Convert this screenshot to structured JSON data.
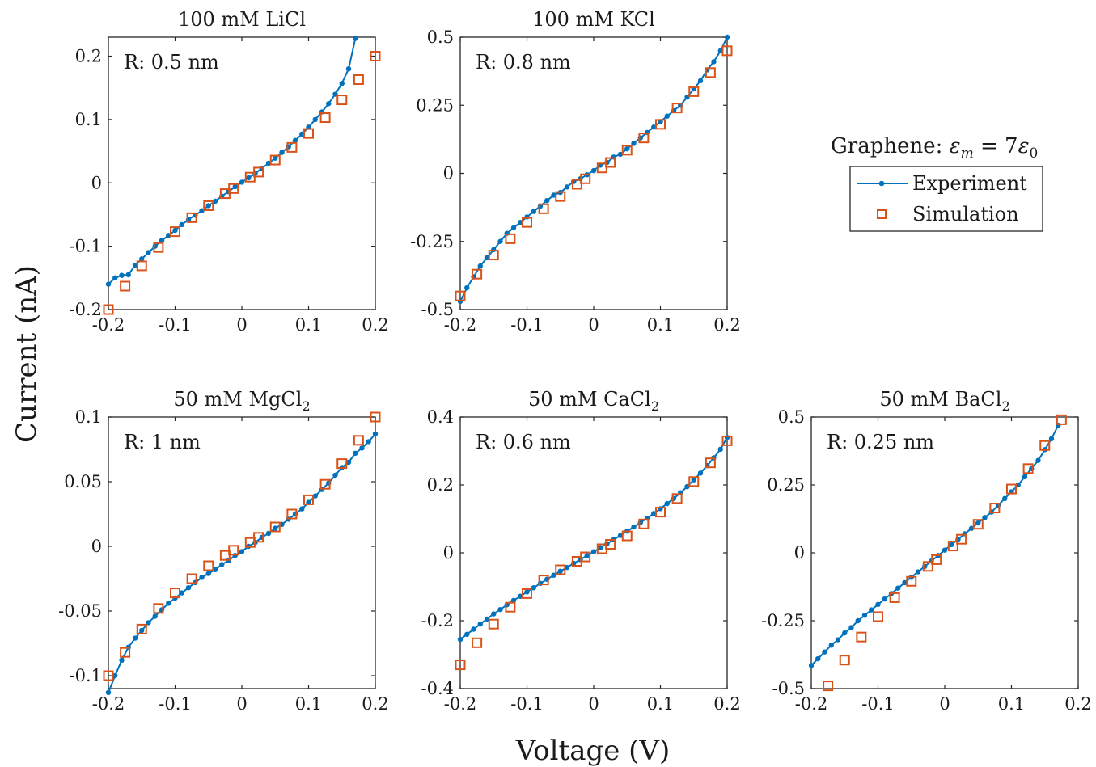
{
  "figure": {
    "xlabel": "Voltage (V)",
    "ylabel": "Current (nA)"
  },
  "legend": {
    "title_prefix": "Graphene: ",
    "title_math": "εm = 7ε0",
    "entries": [
      {
        "label": "Experiment",
        "color": "#0072BD",
        "marker": "dot-line"
      },
      {
        "label": "Simulation",
        "color": "#D95319",
        "marker": "square"
      }
    ]
  },
  "colors": {
    "experiment": "#0072BD",
    "simulation": "#D95319",
    "axes": "#262626"
  },
  "chart_data": [
    {
      "type": "line",
      "title": "100 mM LiCl",
      "title_sub": "",
      "annotation": "R: 0.5 nm",
      "xlim": [
        -0.2,
        0.2
      ],
      "ylim": [
        -0.2,
        0.23
      ],
      "xticks": [
        -0.2,
        -0.1,
        0,
        0.1,
        0.2
      ],
      "xtick_labels": [
        "-0.2",
        "-0.1",
        "0",
        "0.1",
        "0.2"
      ],
      "yticks": [
        -0.2,
        -0.1,
        0,
        0.1,
        0.2
      ],
      "ytick_labels": [
        "-0.2",
        "-0.1",
        "0",
        "0.1",
        "0.2"
      ],
      "series": [
        {
          "name": "Experiment",
          "style": "line-dots",
          "x": [
            -0.2,
            -0.19,
            -0.18,
            -0.17,
            -0.16,
            -0.15,
            -0.14,
            -0.13,
            -0.12,
            -0.11,
            -0.1,
            -0.09,
            -0.08,
            -0.07,
            -0.06,
            -0.05,
            -0.04,
            -0.03,
            -0.02,
            -0.01,
            0,
            0.01,
            0.02,
            0.03,
            0.04,
            0.05,
            0.06,
            0.07,
            0.08,
            0.09,
            0.1,
            0.11,
            0.12,
            0.13,
            0.14,
            0.15,
            0.16,
            0.17
          ],
          "y": [
            -0.16,
            -0.15,
            -0.146,
            -0.145,
            -0.13,
            -0.12,
            -0.11,
            -0.1,
            -0.091,
            -0.083,
            -0.075,
            -0.066,
            -0.058,
            -0.051,
            -0.044,
            -0.036,
            -0.029,
            -0.021,
            -0.014,
            -0.006,
            0.001,
            0.008,
            0.015,
            0.023,
            0.031,
            0.039,
            0.048,
            0.057,
            0.067,
            0.077,
            0.088,
            0.1,
            0.112,
            0.125,
            0.14,
            0.157,
            0.18,
            0.228
          ]
        },
        {
          "name": "Simulation",
          "style": "squares",
          "x": [
            -0.2,
            -0.175,
            -0.15,
            -0.125,
            -0.1,
            -0.075,
            -0.05,
            -0.025,
            -0.0125,
            0.0125,
            0.025,
            0.05,
            0.075,
            0.1,
            0.125,
            0.15,
            0.175,
            0.2
          ],
          "y": [
            -0.2,
            -0.163,
            -0.131,
            -0.102,
            -0.077,
            -0.055,
            -0.036,
            -0.017,
            -0.009,
            0.009,
            0.017,
            0.036,
            0.056,
            0.078,
            0.103,
            0.131,
            0.163,
            0.2
          ]
        }
      ]
    },
    {
      "type": "line",
      "title": "100 mM KCl",
      "title_sub": "",
      "annotation": "R: 0.8 nm",
      "xlim": [
        -0.2,
        0.2
      ],
      "ylim": [
        -0.5,
        0.5
      ],
      "xticks": [
        -0.2,
        -0.1,
        0,
        0.1,
        0.2
      ],
      "xtick_labels": [
        "-0.2",
        "-0.1",
        "0",
        "0.1",
        "0.2"
      ],
      "yticks": [
        -0.5,
        -0.25,
        0,
        0.25,
        0.5
      ],
      "ytick_labels": [
        "-0.5",
        "-0.25",
        "0",
        "0.25",
        "0.5"
      ],
      "series": [
        {
          "name": "Experiment",
          "style": "line-dots",
          "x": [
            -0.2,
            -0.19,
            -0.18,
            -0.17,
            -0.16,
            -0.15,
            -0.14,
            -0.13,
            -0.12,
            -0.11,
            -0.1,
            -0.09,
            -0.08,
            -0.07,
            -0.06,
            -0.05,
            -0.04,
            -0.03,
            -0.02,
            -0.01,
            0,
            0.01,
            0.02,
            0.03,
            0.04,
            0.05,
            0.06,
            0.07,
            0.08,
            0.09,
            0.1,
            0.11,
            0.12,
            0.13,
            0.14,
            0.15,
            0.16,
            0.17,
            0.18,
            0.19,
            0.2
          ],
          "y": [
            -0.47,
            -0.42,
            -0.38,
            -0.34,
            -0.31,
            -0.28,
            -0.25,
            -0.22,
            -0.2,
            -0.18,
            -0.16,
            -0.14,
            -0.12,
            -0.1,
            -0.08,
            -0.07,
            -0.05,
            -0.03,
            -0.02,
            -0.005,
            0.01,
            0.03,
            0.04,
            0.06,
            0.07,
            0.09,
            0.11,
            0.13,
            0.15,
            0.17,
            0.19,
            0.21,
            0.23,
            0.25,
            0.28,
            0.31,
            0.34,
            0.38,
            0.41,
            0.45,
            0.5
          ]
        },
        {
          "name": "Simulation",
          "style": "squares",
          "x": [
            -0.2,
            -0.175,
            -0.15,
            -0.125,
            -0.1,
            -0.075,
            -0.05,
            -0.025,
            -0.0125,
            0.0125,
            0.025,
            0.05,
            0.075,
            0.1,
            0.125,
            0.15,
            0.175,
            0.2
          ],
          "y": [
            -0.45,
            -0.37,
            -0.3,
            -0.24,
            -0.18,
            -0.13,
            -0.085,
            -0.04,
            -0.02,
            0.02,
            0.04,
            0.085,
            0.13,
            0.18,
            0.24,
            0.3,
            0.37,
            0.45
          ]
        }
      ]
    },
    {
      "type": "line",
      "title": "50 mM MgCl",
      "title_sub": "2",
      "annotation": "R: 1 nm",
      "xlim": [
        -0.2,
        0.2
      ],
      "ylim": [
        -0.11,
        0.1
      ],
      "xticks": [
        -0.2,
        -0.1,
        0,
        0.1,
        0.2
      ],
      "xtick_labels": [
        "-0.2",
        "-0.1",
        "0",
        "0.1",
        "0.2"
      ],
      "yticks": [
        -0.1,
        -0.05,
        0,
        0.05,
        0.1
      ],
      "ytick_labels": [
        "-0.1",
        "-0.05",
        "0",
        "0.05",
        "0.1"
      ],
      "series": [
        {
          "name": "Experiment",
          "style": "line-dots",
          "x": [
            -0.2,
            -0.19,
            -0.18,
            -0.17,
            -0.16,
            -0.15,
            -0.14,
            -0.13,
            -0.12,
            -0.11,
            -0.1,
            -0.09,
            -0.08,
            -0.07,
            -0.06,
            -0.05,
            -0.04,
            -0.03,
            -0.02,
            -0.01,
            0,
            0.01,
            0.02,
            0.03,
            0.04,
            0.05,
            0.06,
            0.07,
            0.08,
            0.09,
            0.1,
            0.11,
            0.12,
            0.13,
            0.14,
            0.15,
            0.16,
            0.17,
            0.18,
            0.19,
            0.2
          ],
          "y": [
            -0.113,
            -0.1,
            -0.088,
            -0.078,
            -0.071,
            -0.065,
            -0.059,
            -0.054,
            -0.049,
            -0.044,
            -0.04,
            -0.036,
            -0.032,
            -0.028,
            -0.024,
            -0.021,
            -0.018,
            -0.014,
            -0.011,
            -0.007,
            -0.004,
            0,
            0.003,
            0.007,
            0.01,
            0.014,
            0.017,
            0.021,
            0.025,
            0.029,
            0.034,
            0.039,
            0.044,
            0.049,
            0.055,
            0.061,
            0.065,
            0.072,
            0.076,
            0.081,
            0.087
          ]
        },
        {
          "name": "Simulation",
          "style": "squares",
          "x": [
            -0.2,
            -0.175,
            -0.15,
            -0.125,
            -0.1,
            -0.075,
            -0.05,
            -0.025,
            -0.0125,
            0.0125,
            0.025,
            0.05,
            0.075,
            0.1,
            0.125,
            0.15,
            0.175,
            0.2
          ],
          "y": [
            -0.1,
            -0.082,
            -0.064,
            -0.048,
            -0.036,
            -0.025,
            -0.015,
            -0.007,
            -0.003,
            0.003,
            0.007,
            0.015,
            0.025,
            0.036,
            0.048,
            0.064,
            0.082,
            0.1
          ]
        }
      ]
    },
    {
      "type": "line",
      "title": "50 mM CaCl",
      "title_sub": "2",
      "annotation": "R: 0.6 nm",
      "xlim": [
        -0.2,
        0.2
      ],
      "ylim": [
        -0.4,
        0.4
      ],
      "xticks": [
        -0.2,
        -0.1,
        0,
        0.1,
        0.2
      ],
      "xtick_labels": [
        "-0.2",
        "-0.1",
        "0",
        "0.1",
        "0.2"
      ],
      "yticks": [
        -0.4,
        -0.2,
        0,
        0.2,
        0.4
      ],
      "ytick_labels": [
        "-0.4",
        "-0.2",
        "0",
        "0.2",
        "0.4"
      ],
      "series": [
        {
          "name": "Experiment",
          "style": "line-dots",
          "x": [
            -0.2,
            -0.19,
            -0.18,
            -0.17,
            -0.16,
            -0.15,
            -0.14,
            -0.13,
            -0.12,
            -0.11,
            -0.1,
            -0.09,
            -0.08,
            -0.07,
            -0.06,
            -0.05,
            -0.04,
            -0.03,
            -0.02,
            -0.01,
            0,
            0.01,
            0.02,
            0.03,
            0.04,
            0.05,
            0.06,
            0.07,
            0.08,
            0.09,
            0.1,
            0.11,
            0.12,
            0.13,
            0.14,
            0.15,
            0.16,
            0.17,
            0.18,
            0.19,
            0.2
          ],
          "y": [
            -0.255,
            -0.24,
            -0.225,
            -0.21,
            -0.195,
            -0.18,
            -0.167,
            -0.153,
            -0.14,
            -0.128,
            -0.115,
            -0.103,
            -0.09,
            -0.078,
            -0.066,
            -0.054,
            -0.043,
            -0.031,
            -0.02,
            -0.008,
            0.003,
            0.015,
            0.027,
            0.039,
            0.051,
            0.064,
            0.076,
            0.089,
            0.102,
            0.116,
            0.13,
            0.145,
            0.16,
            0.177,
            0.195,
            0.215,
            0.235,
            0.257,
            0.28,
            0.305,
            0.34
          ]
        },
        {
          "name": "Simulation",
          "style": "squares",
          "x": [
            -0.2,
            -0.175,
            -0.15,
            -0.125,
            -0.1,
            -0.075,
            -0.05,
            -0.025,
            -0.0125,
            0.0125,
            0.025,
            0.05,
            0.075,
            0.1,
            0.125,
            0.15,
            0.175,
            0.2
          ],
          "y": [
            -0.33,
            -0.265,
            -0.21,
            -0.16,
            -0.12,
            -0.08,
            -0.05,
            -0.025,
            -0.012,
            0.012,
            0.025,
            0.05,
            0.085,
            0.12,
            0.16,
            0.21,
            0.265,
            0.33
          ]
        }
      ]
    },
    {
      "type": "line",
      "title": "50 mM BaCl",
      "title_sub": "2",
      "annotation": "R: 0.25 nm",
      "xlim": [
        -0.2,
        0.2
      ],
      "ylim": [
        -0.5,
        0.5
      ],
      "xticks": [
        -0.2,
        -0.1,
        0,
        0.1,
        0.2
      ],
      "xtick_labels": [
        "-0.2",
        "-0.1",
        "0",
        "0.1",
        "0.2"
      ],
      "yticks": [
        -0.5,
        -0.25,
        0,
        0.25,
        0.5
      ],
      "ytick_labels": [
        "-0.5",
        "-0.25",
        "0",
        "0.25",
        "0.5"
      ],
      "series": [
        {
          "name": "Experiment",
          "style": "line-dots",
          "x": [
            -0.2,
            -0.19,
            -0.18,
            -0.17,
            -0.16,
            -0.15,
            -0.14,
            -0.13,
            -0.12,
            -0.11,
            -0.1,
            -0.09,
            -0.08,
            -0.07,
            -0.06,
            -0.05,
            -0.04,
            -0.03,
            -0.02,
            -0.01,
            0,
            0.01,
            0.02,
            0.03,
            0.04,
            0.05,
            0.06,
            0.07,
            0.08,
            0.09,
            0.1,
            0.11,
            0.12,
            0.13,
            0.14,
            0.15,
            0.16,
            0.17
          ],
          "y": [
            -0.415,
            -0.39,
            -0.365,
            -0.34,
            -0.32,
            -0.295,
            -0.275,
            -0.25,
            -0.23,
            -0.21,
            -0.19,
            -0.17,
            -0.15,
            -0.13,
            -0.11,
            -0.09,
            -0.07,
            -0.05,
            -0.03,
            -0.01,
            0.01,
            0.03,
            0.05,
            0.07,
            0.09,
            0.11,
            0.13,
            0.15,
            0.175,
            0.2,
            0.225,
            0.25,
            0.28,
            0.31,
            0.34,
            0.38,
            0.42,
            0.47
          ]
        },
        {
          "name": "Simulation",
          "style": "squares",
          "x": [
            -0.175,
            -0.15,
            -0.125,
            -0.1,
            -0.075,
            -0.05,
            -0.025,
            -0.0125,
            0.0125,
            0.025,
            0.05,
            0.075,
            0.1,
            0.125,
            0.15,
            0.175
          ],
          "y": [
            -0.49,
            -0.395,
            -0.31,
            -0.235,
            -0.165,
            -0.105,
            -0.05,
            -0.025,
            0.025,
            0.05,
            0.105,
            0.165,
            0.235,
            0.31,
            0.395,
            0.49
          ]
        }
      ]
    }
  ]
}
